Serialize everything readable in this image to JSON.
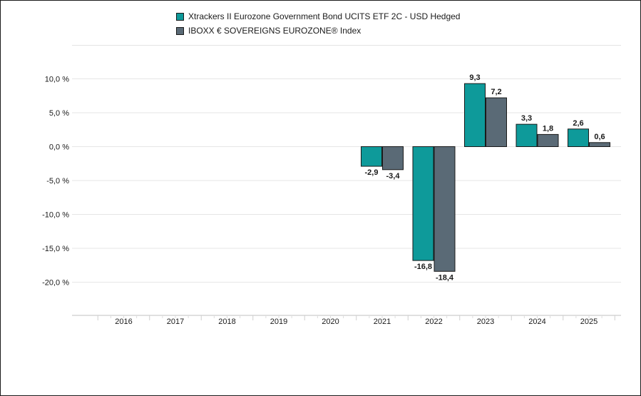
{
  "chart_data": {
    "type": "bar",
    "categories": [
      "2016",
      "2017",
      "2018",
      "2019",
      "2020",
      "2021",
      "2022",
      "2023",
      "2024",
      "2025"
    ],
    "series": [
      {
        "name": "Xtrackers II Eurozone Government Bond UCITS ETF 2C - USD Hedged",
        "color": "#0e9a9a",
        "values": [
          null,
          null,
          null,
          null,
          null,
          -2.9,
          -16.8,
          9.3,
          3.3,
          2.6
        ],
        "labels": [
          "",
          "",
          "",
          "",
          "",
          "-2,9",
          "-16,8",
          "9,3",
          "3,3",
          "2,6"
        ]
      },
      {
        "name": "IBOXX € SOVEREIGNS EUROZONE® Index",
        "color": "#5a6a76",
        "values": [
          null,
          null,
          null,
          null,
          null,
          -3.4,
          -18.4,
          7.2,
          1.8,
          0.6
        ],
        "labels": [
          "",
          "",
          "",
          "",
          "",
          "-3,4",
          "-18,4",
          "7,2",
          "1,8",
          "0,6"
        ]
      }
    ],
    "yticks": [
      10,
      5,
      0,
      -5,
      -10,
      -15,
      -20
    ],
    "ytick_labels": [
      "10,0 %",
      "5,0 %",
      "0,0 %",
      "-5,0 %",
      "-10,0 %",
      "-15,0 %",
      "-20,0 %"
    ],
    "ylim": [
      -25,
      15
    ],
    "grid": true,
    "legend_position": "top"
  }
}
